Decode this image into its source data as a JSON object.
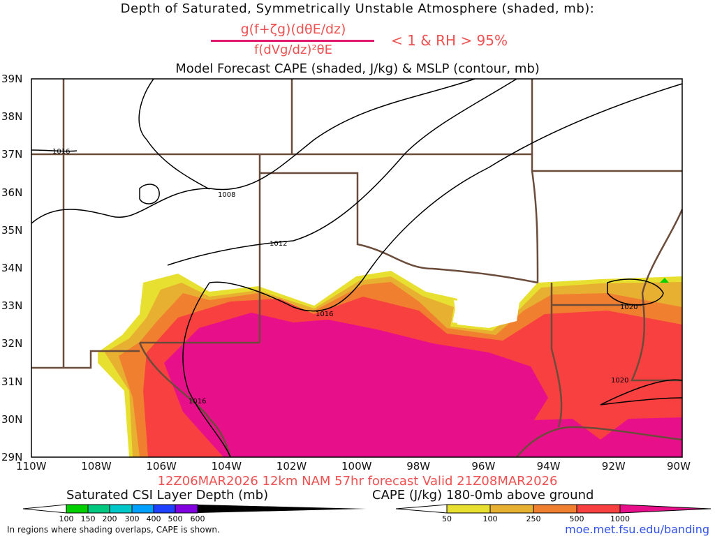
{
  "header": {
    "title": "Depth of Saturated, Symmetrically Unstable Atmosphere (shaded, mb):",
    "numerator": "g(f+ζg)(dθE/dz)",
    "denominator": "f(dVg/dz)²θE",
    "condition": "< 1 & RH > 95%",
    "subtitle": "Model Forecast CAPE (shaded, J/kg) & MSLP (contour, mb)"
  },
  "axes": {
    "lat": [
      "39N",
      "38N",
      "37N",
      "36N",
      "35N",
      "34N",
      "33N",
      "32N",
      "31N",
      "30N",
      "29N"
    ],
    "lon": [
      "110W",
      "108W",
      "106W",
      "104W",
      "102W",
      "100W",
      "98W",
      "96W",
      "94W",
      "92W",
      "90W"
    ]
  },
  "contours": [
    "1016",
    "1008",
    "1012",
    "1016",
    "1020",
    "1020",
    "1016"
  ],
  "footer": {
    "valid": "12Z06MAR2026 12km NAM 57hr forecast Valid 21Z08MAR2026",
    "csi_label": "Saturated CSI Layer Depth (mb)",
    "cape_label": "CAPE (J/kg) 180-0mb above ground",
    "csi_ticks": [
      "100",
      "150",
      "200",
      "300",
      "400",
      "500",
      "600"
    ],
    "cape_ticks": [
      "50",
      "100",
      "250",
      "500",
      "1000"
    ],
    "note": "In regions where shading overlaps, CAPE is shown.",
    "url": "moe.met.fsu.edu/banding"
  },
  "colors": {
    "csi": [
      "#00d000",
      "#00c880",
      "#00c8c8",
      "#00a0ff",
      "#2040ff",
      "#8000e0"
    ],
    "cape": [
      "#e8e030",
      "#e8b030",
      "#f08030",
      "#f84040",
      "#e8108a"
    ],
    "border": "#6b4c3b"
  }
}
